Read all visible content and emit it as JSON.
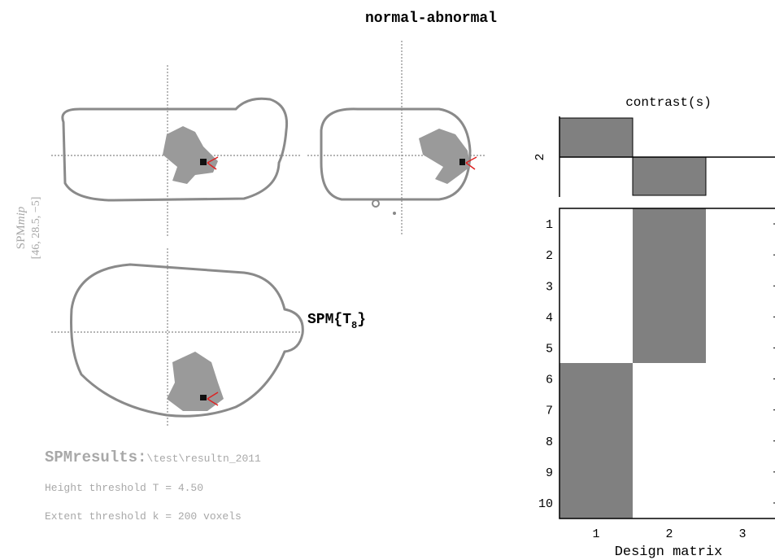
{
  "header": {
    "title": "normal-abnormal"
  },
  "glass_brain": {
    "label": "SPM",
    "label_italic": "mip",
    "coordinates": "[46, 28.5, −5]",
    "statistic": {
      "prefix": "SPM{T",
      "subscript": "8",
      "suffix": "}"
    }
  },
  "results": {
    "name": "SPMresults:",
    "path": "\\test\\resultn_2011",
    "height_threshold": "Height threshold T = 4.50",
    "extent_threshold": "Extent threshold k = 200 voxels"
  },
  "contrast": {
    "title": "contrast(s)",
    "row_label": "2"
  },
  "design_matrix": {
    "row_labels": [
      "1",
      "2",
      "3",
      "4",
      "5",
      "6",
      "7",
      "8",
      "9",
      "10"
    ],
    "column_labels": [
      "1",
      "2",
      "3"
    ],
    "xlabel": "Design matrix"
  }
}
